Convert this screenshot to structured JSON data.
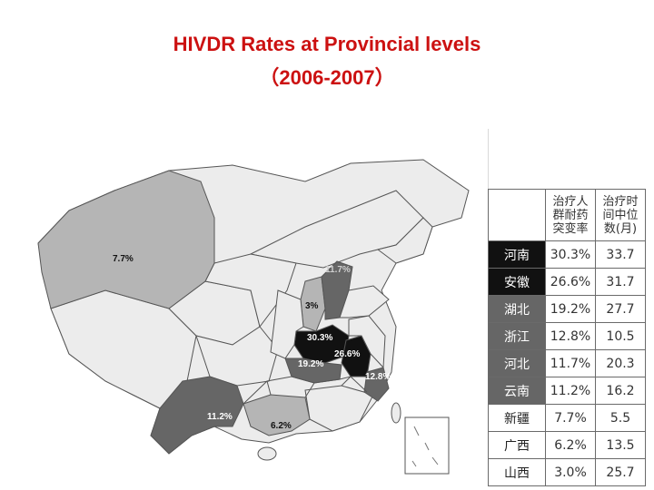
{
  "title": "HIVDR Rates at Provincial levels",
  "subtitle": "（2006-2007）",
  "map_labels": [
    {
      "id": "xinjiang",
      "text": "7.7%"
    },
    {
      "id": "hebei",
      "text": "11.7%"
    },
    {
      "id": "shanxi",
      "text": "3%"
    },
    {
      "id": "henan",
      "text": "30.3%"
    },
    {
      "id": "anhui",
      "text": "26.6%"
    },
    {
      "id": "hubei",
      "text": "19.2%"
    },
    {
      "id": "zhejiang",
      "text": "12.8%"
    },
    {
      "id": "yunnan",
      "text": "11.2%"
    },
    {
      "id": "guangxi",
      "text": "6.2%"
    }
  ],
  "colors": {
    "title": "#cc1111",
    "dark_province": "#111111",
    "mid_province": "#666666",
    "light_province": "#b5b5b5",
    "no_data_province": "#ececec",
    "border": "#555555"
  },
  "table": {
    "header_rate": [
      "治疗人",
      "群耐药",
      "突变率"
    ],
    "header_median": [
      "治疗时",
      "间中位",
      "数(月)"
    ],
    "rows": [
      {
        "province": "河南",
        "rate": "30.3%",
        "median": "33.7",
        "shade": "dark"
      },
      {
        "province": "安徽",
        "rate": "26.6%",
        "median": "31.7",
        "shade": "dark"
      },
      {
        "province": "湖北",
        "rate": "19.2%",
        "median": "27.7",
        "shade": "mid"
      },
      {
        "province": "浙江",
        "rate": "12.8%",
        "median": "10.5",
        "shade": "mid"
      },
      {
        "province": "河北",
        "rate": "11.7%",
        "median": "20.3",
        "shade": "mid"
      },
      {
        "province": "云南",
        "rate": "11.2%",
        "median": "16.2",
        "shade": "mid"
      },
      {
        "province": "新疆",
        "rate": "7.7%",
        "median": "5.5",
        "shade": "light"
      },
      {
        "province": "广西",
        "rate": "6.2%",
        "median": "13.5",
        "shade": "light"
      },
      {
        "province": "山西",
        "rate": "3.0%",
        "median": "25.7",
        "shade": "light"
      }
    ]
  }
}
